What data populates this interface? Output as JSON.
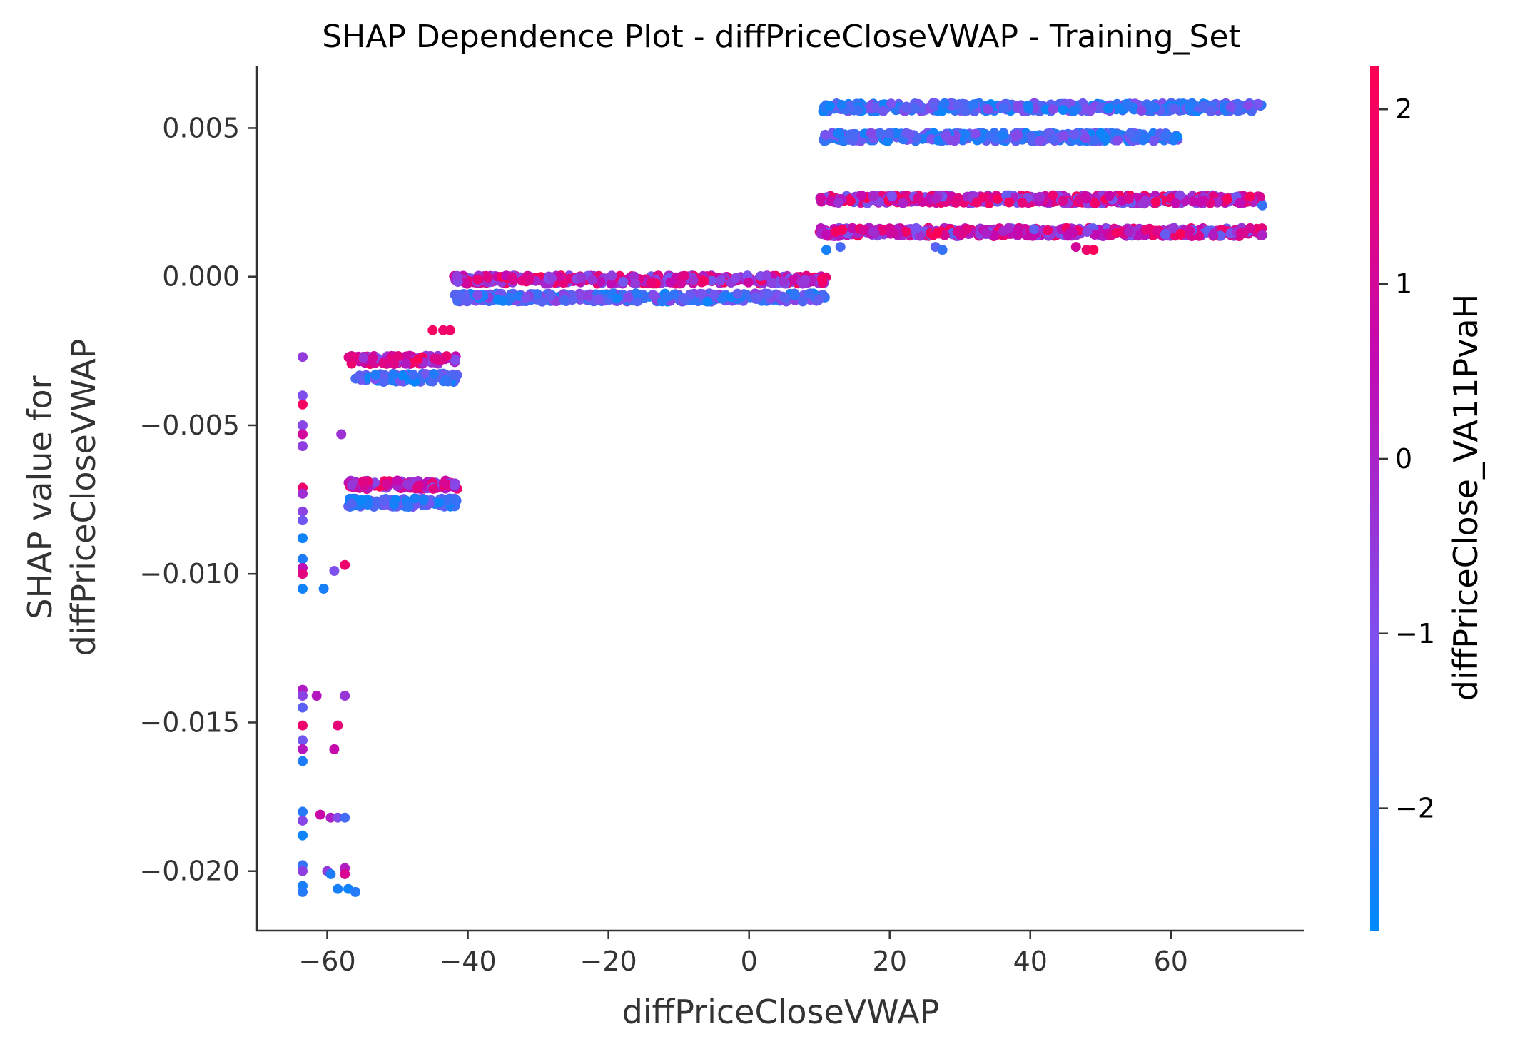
{
  "chart_data": {
    "type": "scatter",
    "title": "SHAP Dependence Plot - diffPriceCloseVWAP - Training_Set",
    "xlabel": "diffPriceCloseVWAP",
    "ylabel": [
      "SHAP value for",
      "diffPriceCloseVWAP"
    ],
    "xlim": [
      -70,
      79
    ],
    "ylim": [
      -0.022,
      0.0071
    ],
    "x_ticks": [
      -60,
      -40,
      -20,
      0,
      20,
      40,
      60
    ],
    "x_tick_labels": [
      "−60",
      "−40",
      "−20",
      "0",
      "20",
      "40",
      "60"
    ],
    "y_ticks": [
      0.005,
      0.0,
      -0.005,
      -0.01,
      -0.015,
      -0.02
    ],
    "y_tick_labels": [
      "0.005",
      "0.000",
      "−0.005",
      "−0.010",
      "−0.015",
      "−0.020"
    ],
    "colorbar": {
      "label": "diffPriceClose_VA11PvaH",
      "range": [
        -2.7,
        2.25
      ],
      "ticks": [
        2,
        1,
        0,
        -1,
        -2
      ],
      "tick_labels": [
        "2",
        "1",
        "0",
        "−1",
        "−2"
      ],
      "colors": [
        "#008afb",
        "#7c52f0",
        "#c20ab3",
        "#ff0052"
      ]
    },
    "clusters": [
      {
        "x": [
          10.5,
          73
        ],
        "y": 0.0057,
        "color_range": [
          -2.6,
          -0.8
        ]
      },
      {
        "x": [
          10.5,
          61
        ],
        "y": 0.0047,
        "color_range": [
          -2.6,
          -0.8
        ]
      },
      {
        "x": [
          10,
          73
        ],
        "y": 0.0026,
        "color_range": [
          -1.5,
          2.2
        ]
      },
      {
        "x": [
          10,
          73
        ],
        "y": 0.0015,
        "color_range": [
          -1.5,
          2.2
        ]
      },
      {
        "x": [
          -42,
          11
        ],
        "y": -0.0001,
        "color_range": [
          -1.2,
          2.2
        ]
      },
      {
        "x": [
          -42,
          11
        ],
        "y": -0.0007,
        "color_range": [
          -2.6,
          -0.5
        ]
      },
      {
        "x": [
          -57,
          -41.5
        ],
        "y": -0.0028,
        "color_range": [
          -1.0,
          2.2
        ]
      },
      {
        "x": [
          -56,
          -41.5
        ],
        "y": -0.0034,
        "color_range": [
          -2.6,
          -1.0
        ]
      },
      {
        "x": [
          -57,
          -41.5
        ],
        "y": -0.007,
        "color_range": [
          -1.2,
          2.2
        ]
      },
      {
        "x": [
          -57,
          -41.5
        ],
        "y": -0.0076,
        "color_range": [
          -2.6,
          -1.0
        ]
      }
    ],
    "points": [
      {
        "x": -63.5,
        "y": -0.0027,
        "c": -0.5
      },
      {
        "x": -63.5,
        "y": -0.004,
        "c": -1.0
      },
      {
        "x": -63.5,
        "y": -0.0043,
        "c": 2.0
      },
      {
        "x": -63.5,
        "y": -0.005,
        "c": -0.8
      },
      {
        "x": -63.5,
        "y": -0.0053,
        "c": 1.0
      },
      {
        "x": -63.5,
        "y": -0.0057,
        "c": -0.6
      },
      {
        "x": -63.5,
        "y": -0.0071,
        "c": 1.8
      },
      {
        "x": -63.5,
        "y": -0.0073,
        "c": -0.2
      },
      {
        "x": -63.5,
        "y": -0.0079,
        "c": -0.7
      },
      {
        "x": -63.5,
        "y": -0.0082,
        "c": -1.2
      },
      {
        "x": -63.5,
        "y": -0.0088,
        "c": -2.5
      },
      {
        "x": -63.5,
        "y": -0.0095,
        "c": -2.3
      },
      {
        "x": -63.5,
        "y": -0.0098,
        "c": 0.5
      },
      {
        "x": -63.5,
        "y": -0.01,
        "c": 1.5
      },
      {
        "x": -63.5,
        "y": -0.0105,
        "c": -2.5
      },
      {
        "x": -60.5,
        "y": -0.0105,
        "c": -2.4
      },
      {
        "x": -59.0,
        "y": -0.0099,
        "c": -1.0
      },
      {
        "x": -57.5,
        "y": -0.0097,
        "c": 1.8
      },
      {
        "x": -58.0,
        "y": -0.0053,
        "c": -0.3
      },
      {
        "x": -63.5,
        "y": -0.0139,
        "c": 0.2
      },
      {
        "x": -63.5,
        "y": -0.0141,
        "c": -0.7
      },
      {
        "x": -63.5,
        "y": -0.0145,
        "c": -1.5
      },
      {
        "x": -63.5,
        "y": -0.0151,
        "c": 1.8
      },
      {
        "x": -63.5,
        "y": -0.0156,
        "c": -1.2
      },
      {
        "x": -63.5,
        "y": -0.0159,
        "c": 0.3
      },
      {
        "x": -63.5,
        "y": -0.0163,
        "c": -2.3
      },
      {
        "x": -61.5,
        "y": -0.0141,
        "c": 0.3
      },
      {
        "x": -57.5,
        "y": -0.0141,
        "c": -0.4
      },
      {
        "x": -58.5,
        "y": -0.0151,
        "c": 1.6
      },
      {
        "x": -59.0,
        "y": -0.0159,
        "c": 0.7
      },
      {
        "x": -63.5,
        "y": -0.018,
        "c": -2.2
      },
      {
        "x": -63.5,
        "y": -0.0183,
        "c": -0.8
      },
      {
        "x": -63.5,
        "y": -0.0188,
        "c": -2.5
      },
      {
        "x": -61.0,
        "y": -0.0181,
        "c": 0.8
      },
      {
        "x": -59.5,
        "y": -0.0182,
        "c": 0.1
      },
      {
        "x": -58.5,
        "y": -0.0182,
        "c": -0.9
      },
      {
        "x": -57.5,
        "y": -0.0182,
        "c": -1.8
      },
      {
        "x": -63.5,
        "y": -0.0198,
        "c": -2.0
      },
      {
        "x": -63.5,
        "y": -0.02,
        "c": -0.6
      },
      {
        "x": -63.5,
        "y": -0.0205,
        "c": -2.4
      },
      {
        "x": -63.5,
        "y": -0.0207,
        "c": -2.2
      },
      {
        "x": -60.0,
        "y": -0.02,
        "c": -0.5
      },
      {
        "x": -59.5,
        "y": -0.0201,
        "c": -2.3
      },
      {
        "x": -58.5,
        "y": -0.0206,
        "c": -2.4
      },
      {
        "x": -57.5,
        "y": -0.0199,
        "c": 0.2
      },
      {
        "x": -57.5,
        "y": -0.0201,
        "c": 1.2
      },
      {
        "x": -57.0,
        "y": -0.0206,
        "c": -2.5
      },
      {
        "x": -56.0,
        "y": -0.0207,
        "c": -2.2
      },
      {
        "x": -45.0,
        "y": -0.0018,
        "c": 2.0
      },
      {
        "x": -43.5,
        "y": -0.0018,
        "c": 1.8
      },
      {
        "x": -42.5,
        "y": -0.0018,
        "c": 1.9
      },
      {
        "x": 11.0,
        "y": 0.0009,
        "c": -2.4
      },
      {
        "x": 13.0,
        "y": 0.001,
        "c": -1.8
      },
      {
        "x": 26.5,
        "y": 0.001,
        "c": -1.5
      },
      {
        "x": 27.5,
        "y": 0.0009,
        "c": -2.0
      },
      {
        "x": 46.5,
        "y": 0.001,
        "c": 1.0
      },
      {
        "x": 48.0,
        "y": 0.0009,
        "c": 1.8
      },
      {
        "x": 49.0,
        "y": 0.0009,
        "c": 2.1
      },
      {
        "x": 66.0,
        "y": 0.0014,
        "c": 0.2
      },
      {
        "x": 73.0,
        "y": 0.0014,
        "c": 0.1
      },
      {
        "x": 73.0,
        "y": 0.0024,
        "c": -2.0
      }
    ]
  }
}
